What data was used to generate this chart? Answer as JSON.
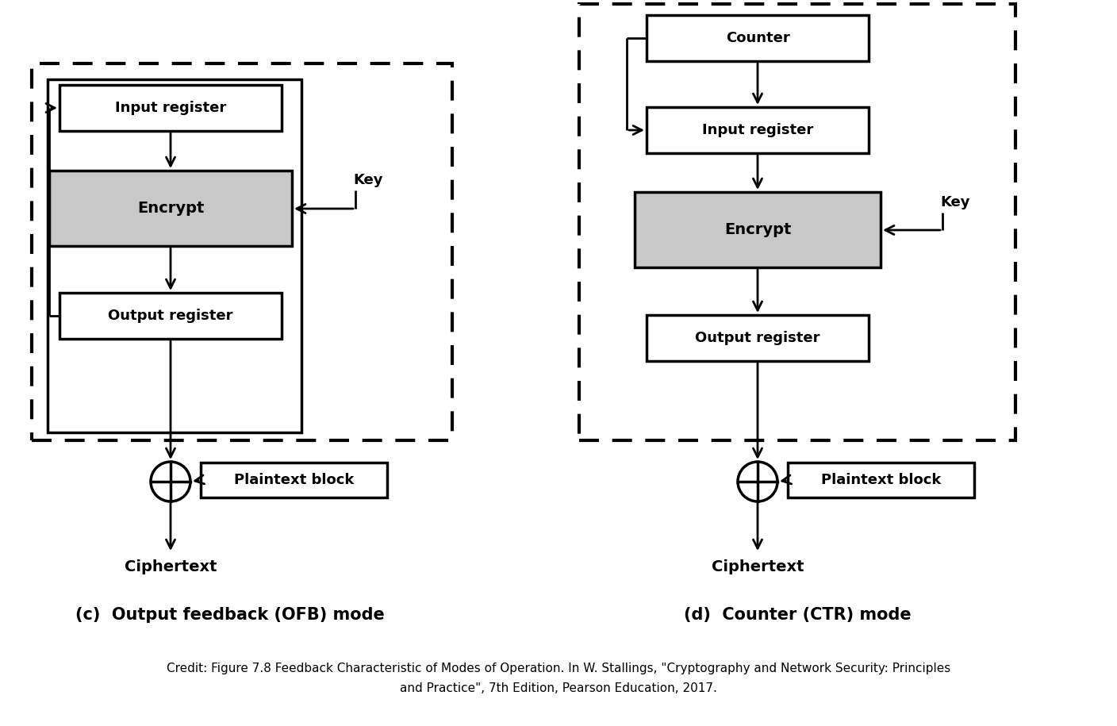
{
  "bg_color": "#ffffff",
  "box_color_white": "#ffffff",
  "box_color_gray": "#c8c8c8",
  "box_edge_color": "#000000",
  "text_color": "#000000",
  "ofb_title": "(c)  Output feedback (OFB) mode",
  "ctr_title": "(d)  Counter (CTR) mode",
  "credit_text1": "Credit: Figure 7.8 Feedback Characteristic of Modes of Operation. In W. Stallings, \"Cryptography and Network Security: Principles",
  "credit_text2": "and Practice\", 7th Edition, Pearson Education, 2017."
}
